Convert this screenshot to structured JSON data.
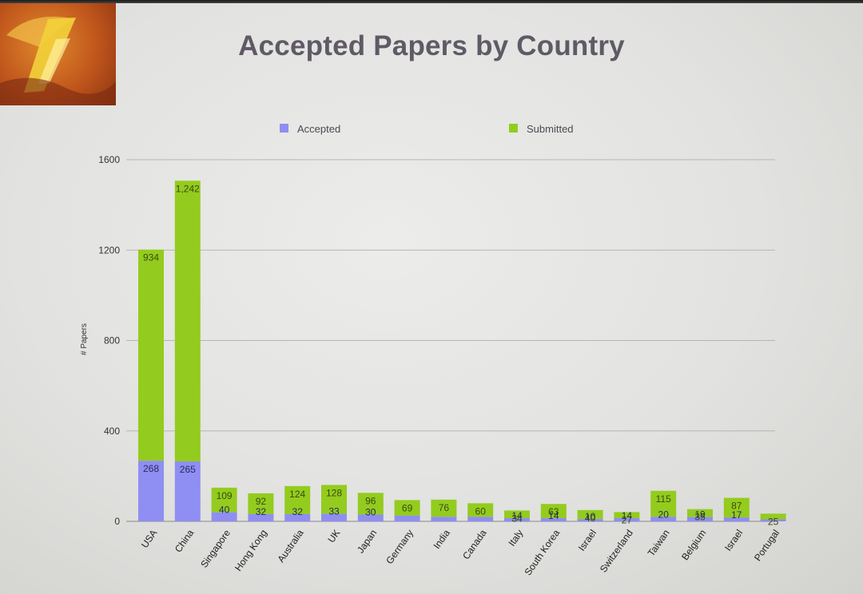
{
  "title": "Accepted Papers by Country",
  "colors": {
    "accepted": "#8f8ef2",
    "submitted": "#93cc1e",
    "grid": "#b5b5b3"
  },
  "legend": {
    "accepted": "Accepted",
    "submitted": "Submitted"
  },
  "icons": {
    "logo": "conference-logo-icon"
  },
  "chart_data": {
    "type": "bar",
    "stacked": true,
    "title": "Accepted Papers by Country",
    "xlabel": "",
    "ylabel": "# Papers",
    "ylim": [
      0,
      1600
    ],
    "yticks": [
      "0",
      "400",
      "800",
      "1200",
      "1600"
    ],
    "grid": true,
    "legend_position": "top",
    "categories": [
      "USA",
      "China",
      "Singapore",
      "Hong Kong",
      "Australia",
      "UK",
      "Japan",
      "Germany",
      "India",
      "Canada",
      "Italy",
      "South Korea",
      "Israel",
      "Switzerland",
      "Taiwan",
      "Belgium",
      "Israel",
      "Portugal"
    ],
    "series": [
      {
        "name": "Accepted",
        "values": [
          268,
          265,
          40,
          32,
          32,
          33,
          30,
          25,
          20,
          20,
          14,
          14,
          10,
          14,
          20,
          19,
          17,
          9
        ],
        "labels": [
          "268",
          "265",
          "40",
          "32",
          "32",
          "33",
          "30",
          "",
          "",
          "",
          "14",
          "14",
          "10",
          "14",
          "20",
          "19",
          "17",
          ""
        ]
      },
      {
        "name": "Submitted",
        "values": [
          934,
          1242,
          109,
          92,
          124,
          128,
          96,
          69,
          76,
          60,
          34,
          63,
          40,
          27,
          115,
          35,
          87,
          25
        ],
        "labels": [
          "934",
          "1,242",
          "109",
          "92",
          "124",
          "128",
          "96",
          "69",
          "76",
          "60",
          "34",
          "63",
          "40",
          "27",
          "115",
          "35",
          "87",
          "25"
        ]
      }
    ]
  }
}
